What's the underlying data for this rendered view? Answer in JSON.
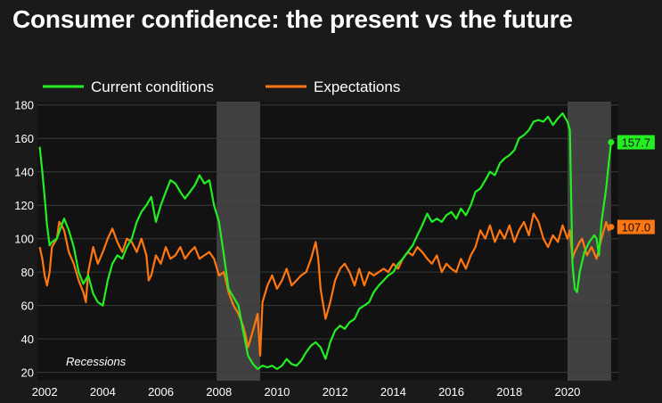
{
  "title": "Consumer confidence: the present vs the future",
  "chart_data": {
    "type": "line",
    "title": "Consumer confidence: the present vs the future",
    "xlabel": "",
    "ylabel": "",
    "xlim": [
      2001.75,
      2021.75
    ],
    "ylim": [
      15,
      182
    ],
    "y_ticks": [
      20,
      40,
      60,
      80,
      100,
      120,
      140,
      160,
      180
    ],
    "x_ticks": [
      2002,
      2004,
      2006,
      2008,
      2010,
      2012,
      2014,
      2016,
      2018,
      2020
    ],
    "x_tick_labels": [
      "2002",
      "2004",
      "2006",
      "2008",
      "2010",
      "2012",
      "2014",
      "2016",
      "2018",
      "2020"
    ],
    "grid": true,
    "legend_position": "top-left",
    "annotation": "Recessions",
    "recessions": [
      {
        "start": 2007.92,
        "end": 2009.42
      },
      {
        "start": 2020.0,
        "end": 2021.5
      }
    ],
    "series": [
      {
        "name": "Current conditions",
        "color": "#22ee22",
        "end_label": "157.7",
        "end_value": 157.7,
        "points": [
          [
            2001.83,
            155
          ],
          [
            2001.92,
            140
          ],
          [
            2002.0,
            125
          ],
          [
            2002.08,
            108
          ],
          [
            2002.17,
            96
          ],
          [
            2002.25,
            98
          ],
          [
            2002.42,
            100
          ],
          [
            2002.58,
            108
          ],
          [
            2002.67,
            112
          ],
          [
            2002.83,
            105
          ],
          [
            2003.0,
            95
          ],
          [
            2003.17,
            80
          ],
          [
            2003.33,
            73
          ],
          [
            2003.5,
            78
          ],
          [
            2003.67,
            67
          ],
          [
            2003.83,
            62
          ],
          [
            2004.0,
            60
          ],
          [
            2004.17,
            75
          ],
          [
            2004.33,
            85
          ],
          [
            2004.5,
            90
          ],
          [
            2004.67,
            88
          ],
          [
            2004.83,
            95
          ],
          [
            2005.0,
            100
          ],
          [
            2005.17,
            110
          ],
          [
            2005.33,
            116
          ],
          [
            2005.5,
            120
          ],
          [
            2005.67,
            125
          ],
          [
            2005.83,
            110
          ],
          [
            2006.0,
            120
          ],
          [
            2006.17,
            128
          ],
          [
            2006.33,
            135
          ],
          [
            2006.5,
            133
          ],
          [
            2006.67,
            128
          ],
          [
            2006.83,
            124
          ],
          [
            2007.0,
            128
          ],
          [
            2007.17,
            132
          ],
          [
            2007.33,
            138
          ],
          [
            2007.5,
            133
          ],
          [
            2007.67,
            135
          ],
          [
            2007.83,
            120
          ],
          [
            2008.0,
            110
          ],
          [
            2008.17,
            90
          ],
          [
            2008.33,
            70
          ],
          [
            2008.5,
            65
          ],
          [
            2008.67,
            60
          ],
          [
            2008.83,
            45
          ],
          [
            2009.0,
            30
          ],
          [
            2009.17,
            25
          ],
          [
            2009.33,
            22
          ],
          [
            2009.5,
            24
          ],
          [
            2009.67,
            23
          ],
          [
            2009.83,
            24
          ],
          [
            2010.0,
            22
          ],
          [
            2010.17,
            24
          ],
          [
            2010.33,
            28
          ],
          [
            2010.5,
            25
          ],
          [
            2010.67,
            24
          ],
          [
            2010.83,
            27
          ],
          [
            2011.0,
            32
          ],
          [
            2011.17,
            36
          ],
          [
            2011.33,
            38
          ],
          [
            2011.5,
            35
          ],
          [
            2011.67,
            28
          ],
          [
            2011.83,
            38
          ],
          [
            2012.0,
            45
          ],
          [
            2012.17,
            48
          ],
          [
            2012.33,
            46
          ],
          [
            2012.5,
            50
          ],
          [
            2012.67,
            52
          ],
          [
            2012.83,
            58
          ],
          [
            2013.0,
            60
          ],
          [
            2013.17,
            62
          ],
          [
            2013.33,
            68
          ],
          [
            2013.5,
            72
          ],
          [
            2013.67,
            75
          ],
          [
            2013.83,
            78
          ],
          [
            2014.0,
            80
          ],
          [
            2014.17,
            85
          ],
          [
            2014.33,
            88
          ],
          [
            2014.5,
            92
          ],
          [
            2014.67,
            96
          ],
          [
            2014.83,
            102
          ],
          [
            2015.0,
            108
          ],
          [
            2015.17,
            115
          ],
          [
            2015.33,
            110
          ],
          [
            2015.5,
            112
          ],
          [
            2015.67,
            110
          ],
          [
            2015.83,
            114
          ],
          [
            2016.0,
            116
          ],
          [
            2016.17,
            112
          ],
          [
            2016.33,
            118
          ],
          [
            2016.5,
            114
          ],
          [
            2016.67,
            120
          ],
          [
            2016.83,
            128
          ],
          [
            2017.0,
            130
          ],
          [
            2017.17,
            135
          ],
          [
            2017.33,
            140
          ],
          [
            2017.5,
            138
          ],
          [
            2017.67,
            145
          ],
          [
            2017.83,
            148
          ],
          [
            2018.0,
            150
          ],
          [
            2018.17,
            153
          ],
          [
            2018.33,
            160
          ],
          [
            2018.5,
            162
          ],
          [
            2018.67,
            165
          ],
          [
            2018.83,
            170
          ],
          [
            2019.0,
            171
          ],
          [
            2019.17,
            170
          ],
          [
            2019.33,
            173
          ],
          [
            2019.5,
            168
          ],
          [
            2019.67,
            172
          ],
          [
            2019.83,
            175
          ],
          [
            2020.0,
            170
          ],
          [
            2020.08,
            165
          ],
          [
            2020.17,
            85
          ],
          [
            2020.25,
            70
          ],
          [
            2020.33,
            68
          ],
          [
            2020.42,
            80
          ],
          [
            2020.58,
            92
          ],
          [
            2020.75,
            98
          ],
          [
            2020.92,
            102
          ],
          [
            2021.0,
            100
          ],
          [
            2021.08,
            90
          ],
          [
            2021.17,
            110
          ],
          [
            2021.25,
            120
          ],
          [
            2021.33,
            130
          ],
          [
            2021.42,
            145
          ],
          [
            2021.5,
            157.7
          ]
        ]
      },
      {
        "name": "Expectations",
        "color": "#ff7711",
        "end_label": "107.0",
        "end_value": 107.0,
        "points": [
          [
            2001.83,
            95
          ],
          [
            2001.92,
            88
          ],
          [
            2002.0,
            78
          ],
          [
            2002.08,
            72
          ],
          [
            2002.17,
            80
          ],
          [
            2002.25,
            95
          ],
          [
            2002.42,
            100
          ],
          [
            2002.5,
            110
          ],
          [
            2002.58,
            108
          ],
          [
            2002.67,
            105
          ],
          [
            2002.83,
            92
          ],
          [
            2003.0,
            85
          ],
          [
            2003.17,
            75
          ],
          [
            2003.33,
            68
          ],
          [
            2003.42,
            62
          ],
          [
            2003.5,
            80
          ],
          [
            2003.67,
            95
          ],
          [
            2003.83,
            85
          ],
          [
            2004.0,
            92
          ],
          [
            2004.17,
            100
          ],
          [
            2004.33,
            106
          ],
          [
            2004.5,
            98
          ],
          [
            2004.67,
            92
          ],
          [
            2004.83,
            100
          ],
          [
            2005.0,
            98
          ],
          [
            2005.17,
            92
          ],
          [
            2005.33,
            100
          ],
          [
            2005.42,
            95
          ],
          [
            2005.5,
            90
          ],
          [
            2005.58,
            75
          ],
          [
            2005.67,
            78
          ],
          [
            2005.83,
            90
          ],
          [
            2006.0,
            85
          ],
          [
            2006.17,
            95
          ],
          [
            2006.33,
            88
          ],
          [
            2006.5,
            90
          ],
          [
            2006.67,
            95
          ],
          [
            2006.83,
            88
          ],
          [
            2007.0,
            92
          ],
          [
            2007.17,
            95
          ],
          [
            2007.33,
            88
          ],
          [
            2007.5,
            90
          ],
          [
            2007.67,
            92
          ],
          [
            2007.83,
            88
          ],
          [
            2008.0,
            78
          ],
          [
            2008.17,
            80
          ],
          [
            2008.33,
            68
          ],
          [
            2008.5,
            60
          ],
          [
            2008.67,
            55
          ],
          [
            2008.83,
            48
          ],
          [
            2008.92,
            42
          ],
          [
            2009.0,
            35
          ],
          [
            2009.17,
            45
          ],
          [
            2009.25,
            50
          ],
          [
            2009.33,
            55
          ],
          [
            2009.42,
            30
          ],
          [
            2009.5,
            62
          ],
          [
            2009.67,
            72
          ],
          [
            2009.83,
            78
          ],
          [
            2010.0,
            70
          ],
          [
            2010.17,
            75
          ],
          [
            2010.33,
            82
          ],
          [
            2010.5,
            72
          ],
          [
            2010.67,
            75
          ],
          [
            2010.83,
            78
          ],
          [
            2011.0,
            80
          ],
          [
            2011.17,
            88
          ],
          [
            2011.33,
            98
          ],
          [
            2011.42,
            88
          ],
          [
            2011.5,
            70
          ],
          [
            2011.67,
            52
          ],
          [
            2011.83,
            62
          ],
          [
            2012.0,
            75
          ],
          [
            2012.17,
            82
          ],
          [
            2012.33,
            85
          ],
          [
            2012.5,
            80
          ],
          [
            2012.67,
            72
          ],
          [
            2012.83,
            82
          ],
          [
            2013.0,
            72
          ],
          [
            2013.17,
            80
          ],
          [
            2013.33,
            78
          ],
          [
            2013.5,
            80
          ],
          [
            2013.67,
            82
          ],
          [
            2013.83,
            80
          ],
          [
            2014.0,
            85
          ],
          [
            2014.17,
            82
          ],
          [
            2014.33,
            88
          ],
          [
            2014.5,
            92
          ],
          [
            2014.67,
            90
          ],
          [
            2014.83,
            95
          ],
          [
            2015.0,
            92
          ],
          [
            2015.17,
            88
          ],
          [
            2015.33,
            85
          ],
          [
            2015.5,
            90
          ],
          [
            2015.67,
            80
          ],
          [
            2015.83,
            85
          ],
          [
            2016.0,
            82
          ],
          [
            2016.17,
            80
          ],
          [
            2016.33,
            88
          ],
          [
            2016.5,
            82
          ],
          [
            2016.67,
            90
          ],
          [
            2016.83,
            95
          ],
          [
            2017.0,
            105
          ],
          [
            2017.17,
            100
          ],
          [
            2017.33,
            108
          ],
          [
            2017.5,
            98
          ],
          [
            2017.67,
            105
          ],
          [
            2017.83,
            100
          ],
          [
            2018.0,
            108
          ],
          [
            2018.17,
            98
          ],
          [
            2018.33,
            105
          ],
          [
            2018.5,
            110
          ],
          [
            2018.67,
            102
          ],
          [
            2018.83,
            115
          ],
          [
            2019.0,
            110
          ],
          [
            2019.17,
            100
          ],
          [
            2019.33,
            95
          ],
          [
            2019.5,
            102
          ],
          [
            2019.67,
            98
          ],
          [
            2019.83,
            108
          ],
          [
            2020.0,
            100
          ],
          [
            2020.08,
            105
          ],
          [
            2020.17,
            88
          ],
          [
            2020.25,
            92
          ],
          [
            2020.42,
            98
          ],
          [
            2020.5,
            100
          ],
          [
            2020.67,
            90
          ],
          [
            2020.83,
            95
          ],
          [
            2021.0,
            88
          ],
          [
            2021.17,
            100
          ],
          [
            2021.33,
            110
          ],
          [
            2021.42,
            105
          ],
          [
            2021.5,
            107.0
          ]
        ]
      }
    ]
  }
}
